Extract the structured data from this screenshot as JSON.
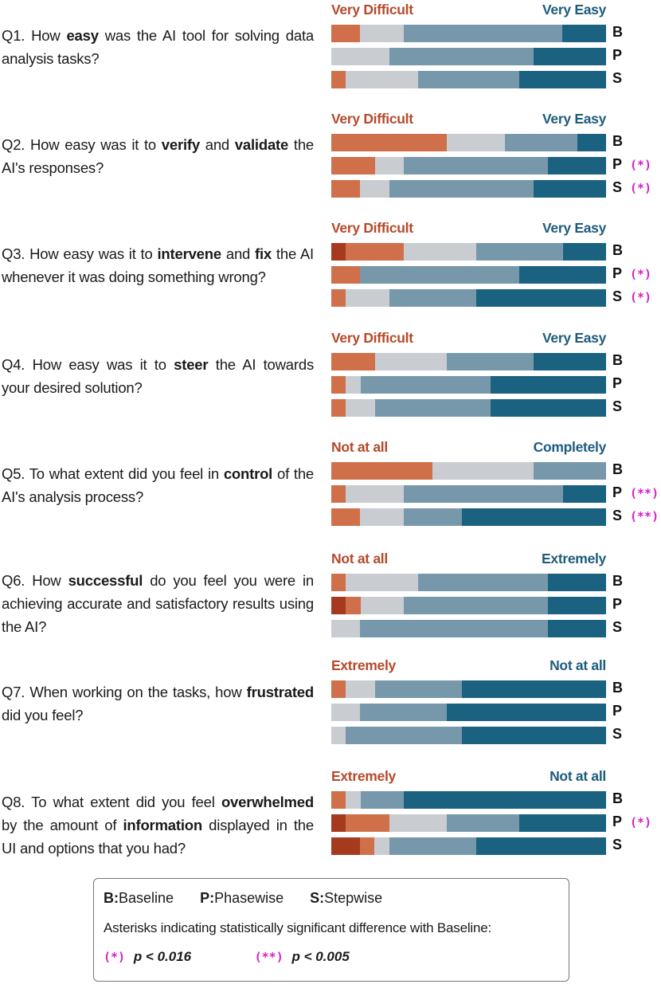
{
  "colors": {
    "scale": [
      "#a53a1f",
      "#d0704a",
      "#c9cdd1",
      "#7798ab",
      "#1a6280"
    ],
    "left_label": "#b5492a",
    "right_label": "#1e5c7c",
    "significance": "#d81cc8"
  },
  "chart_data": {
    "type": "bar",
    "subtype": "stacked-horizontal-likert",
    "scale_points": 5,
    "questions": [
      {
        "id": "Q1",
        "text": [
          {
            "t": "Q1. How "
          },
          {
            "t": "easy",
            "b": true
          },
          {
            "t": " was the AI tool for solving data analysis tasks?"
          }
        ],
        "left_label": "Very Difficult",
        "right_label": "Very Easy",
        "rows": [
          {
            "condition": "B",
            "values": [
              0,
              10.5,
              15.8,
              57.9,
              15.8
            ],
            "sig": ""
          },
          {
            "condition": "P",
            "values": [
              0,
              0,
              21.1,
              52.6,
              26.3
            ],
            "sig": ""
          },
          {
            "condition": "S",
            "values": [
              0,
              5.3,
              26.3,
              36.8,
              31.6
            ],
            "sig": ""
          }
        ]
      },
      {
        "id": "Q2",
        "text": [
          {
            "t": "Q2. How easy was it to "
          },
          {
            "t": "verify",
            "b": true
          },
          {
            "t": " and "
          },
          {
            "t": "validate",
            "b": true
          },
          {
            "t": " the AI's responses?"
          }
        ],
        "left_label": "Very Difficult",
        "right_label": "Very Easy",
        "rows": [
          {
            "condition": "B",
            "values": [
              0,
              42.1,
              21.1,
              26.3,
              10.5
            ],
            "sig": ""
          },
          {
            "condition": "P",
            "values": [
              0,
              15.8,
              10.5,
              52.6,
              21.1
            ],
            "sig": "(*)"
          },
          {
            "condition": "S",
            "values": [
              0,
              10.5,
              10.5,
              52.6,
              26.3
            ],
            "sig": "(*)"
          }
        ]
      },
      {
        "id": "Q3",
        "text": [
          {
            "t": "Q3. How easy was it to "
          },
          {
            "t": "intervene",
            "b": true
          },
          {
            "t": " and "
          },
          {
            "t": "fix",
            "b": true
          },
          {
            "t": " the AI whenever it was doing something wrong?"
          }
        ],
        "left_label": "Very Difficult",
        "right_label": "Very Easy",
        "rows": [
          {
            "condition": "B",
            "values": [
              5.3,
              21.1,
              26.3,
              31.6,
              15.8
            ],
            "sig": ""
          },
          {
            "condition": "P",
            "values": [
              0,
              10.5,
              0,
              57.9,
              31.6
            ],
            "sig": "(*)"
          },
          {
            "condition": "S",
            "values": [
              0,
              5.3,
              15.8,
              31.6,
              47.4
            ],
            "sig": "(*)"
          }
        ]
      },
      {
        "id": "Q4",
        "text": [
          {
            "t": "Q4. How easy was it to "
          },
          {
            "t": "steer",
            "b": true
          },
          {
            "t": " the AI towards your desired solution?"
          }
        ],
        "left_label": "Very Difficult",
        "right_label": "Very Easy",
        "rows": [
          {
            "condition": "B",
            "values": [
              0,
              15.8,
              26.3,
              31.6,
              26.3
            ],
            "sig": ""
          },
          {
            "condition": "P",
            "values": [
              0,
              5.3,
              5.3,
              47.4,
              42.1
            ],
            "sig": ""
          },
          {
            "condition": "S",
            "values": [
              0,
              5.3,
              10.5,
              42.1,
              42.1
            ],
            "sig": ""
          }
        ]
      },
      {
        "id": "Q5",
        "text": [
          {
            "t": "Q5. To what extent did you feel in "
          },
          {
            "t": "control",
            "b": true
          },
          {
            "t": " of the AI's analysis process?"
          }
        ],
        "left_label": "Not at all",
        "right_label": "Completely",
        "rows": [
          {
            "condition": "B",
            "values": [
              0,
              36.8,
              36.8,
              26.3,
              0
            ],
            "sig": ""
          },
          {
            "condition": "P",
            "values": [
              0,
              5.3,
              21.1,
              57.9,
              15.8
            ],
            "sig": "(**)"
          },
          {
            "condition": "S",
            "values": [
              0,
              10.5,
              15.8,
              21.1,
              52.6
            ],
            "sig": "(**)"
          }
        ]
      },
      {
        "id": "Q6",
        "text": [
          {
            "t": "Q6. How "
          },
          {
            "t": "successful",
            "b": true
          },
          {
            "t": " do you feel you were in achieving accurate and satisfactory results using the AI?"
          }
        ],
        "left_label": "Not at all",
        "right_label": "Extremely",
        "rows": [
          {
            "condition": "B",
            "values": [
              0,
              5.3,
              26.3,
              47.4,
              21.1
            ],
            "sig": ""
          },
          {
            "condition": "P",
            "values": [
              5.3,
              5.3,
              15.8,
              52.6,
              21.1
            ],
            "sig": ""
          },
          {
            "condition": "S",
            "values": [
              0,
              0,
              10.5,
              68.4,
              21.1
            ],
            "sig": ""
          }
        ]
      },
      {
        "id": "Q7",
        "text": [
          {
            "t": "Q7. When working on the tasks, how "
          },
          {
            "t": "frustrated",
            "b": true
          },
          {
            "t": " did you feel?"
          }
        ],
        "left_label": "Extremely",
        "right_label": "Not at all",
        "rows": [
          {
            "condition": "B",
            "values": [
              0,
              5.3,
              10.5,
              31.6,
              52.6
            ],
            "sig": ""
          },
          {
            "condition": "P",
            "values": [
              0,
              0,
              10.5,
              31.6,
              57.9
            ],
            "sig": ""
          },
          {
            "condition": "S",
            "values": [
              0,
              0,
              5.3,
              42.1,
              52.6
            ],
            "sig": ""
          }
        ]
      },
      {
        "id": "Q8",
        "text": [
          {
            "t": "Q8. To what extent did you feel "
          },
          {
            "t": "overwhelmed",
            "b": true
          },
          {
            "t": " by the amount of "
          },
          {
            "t": "information",
            "b": true
          },
          {
            "t": " displayed in the UI and options that you had?"
          }
        ],
        "left_label": "Extremely",
        "right_label": "Not at all",
        "rows": [
          {
            "condition": "B",
            "values": [
              0,
              5.3,
              5.3,
              15.8,
              73.7
            ],
            "sig": ""
          },
          {
            "condition": "P",
            "values": [
              5.3,
              15.8,
              21.1,
              26.3,
              31.6
            ],
            "sig": "(*)"
          },
          {
            "condition": "S",
            "values": [
              10.5,
              5.3,
              5.3,
              31.6,
              47.4
            ],
            "sig": ""
          }
        ]
      }
    ]
  },
  "legend": {
    "conditions": [
      {
        "key": "B:",
        "label": "Baseline"
      },
      {
        "key": "P:",
        "label": "Phasewise"
      },
      {
        "key": "S:",
        "label": "Stepwise"
      }
    ],
    "note": "Asterisks indicating statistically significant difference with Baseline:",
    "sig_levels": [
      {
        "mark": "(*)",
        "p": "p < 0.016"
      },
      {
        "mark": "(**)",
        "p": "p < 0.005"
      }
    ]
  }
}
